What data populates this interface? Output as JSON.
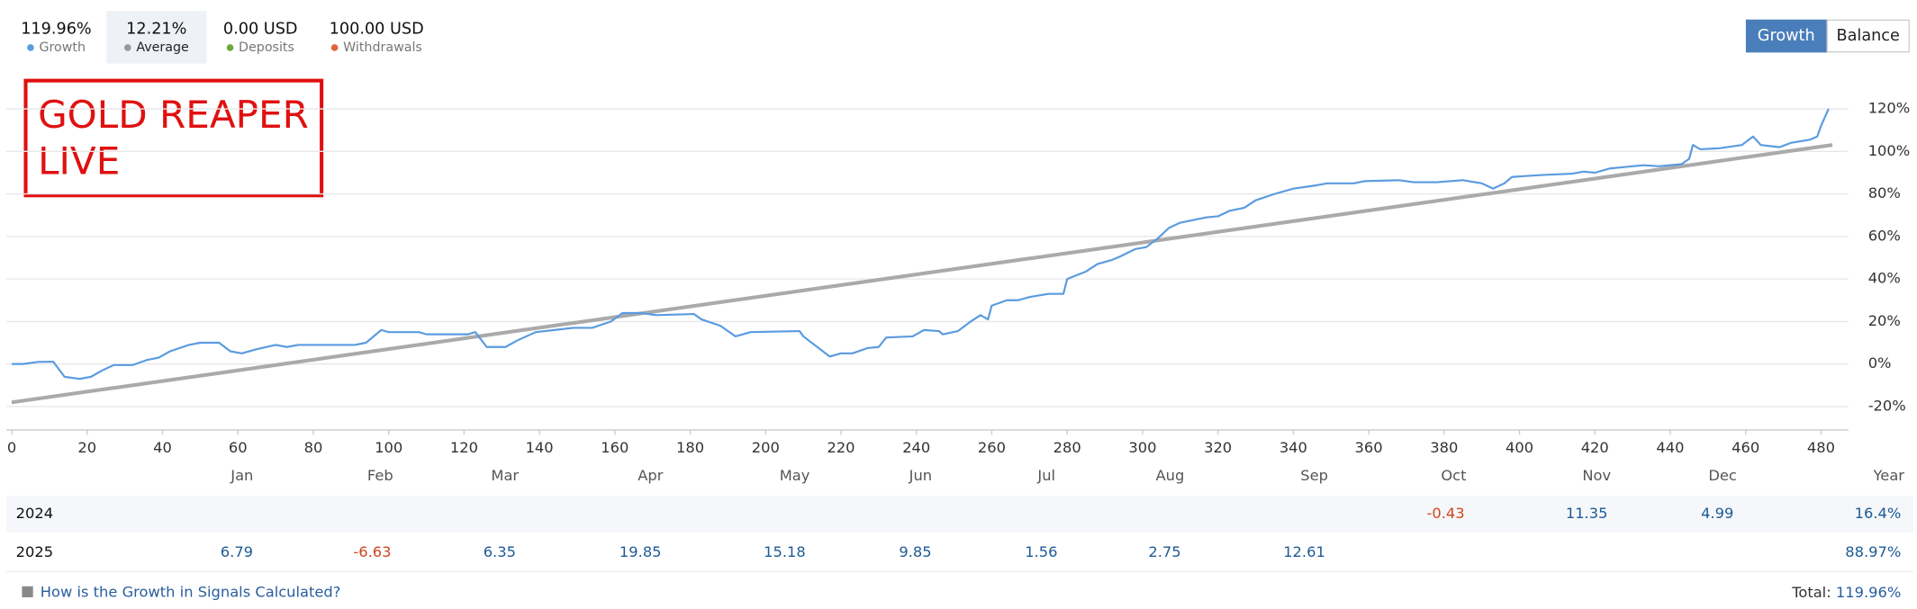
{
  "buttons": [
    "Growth",
    "Balance"
  ],
  "annotation": [
    "GOLD REAPER",
    "LIVE"
  ],
  "extra_legend": [
    {
      "name": "Deposits",
      "stat": "0.00 USD",
      "color": "#6aaa3a"
    },
    {
      "name": "Withdrawals",
      "stat": "100.00 USD",
      "color": "#e0653a"
    }
  ],
  "chart_data": {
    "type": "line",
    "series": [
      {
        "name": "Growth",
        "stat": "119.96%",
        "color": "#5b9be0",
        "x": [
          0,
          3,
          7,
          11,
          14,
          18,
          21,
          24,
          27,
          32,
          36,
          39,
          42,
          47,
          50,
          55,
          58,
          61,
          65,
          70,
          73,
          76,
          81,
          91,
          94,
          98,
          100,
          108,
          110,
          121,
          123,
          126,
          131,
          134,
          139,
          144,
          149,
          154,
          159,
          162,
          167,
          171,
          181,
          183,
          188,
          192,
          196,
          209,
          210,
          217,
          220,
          223,
          227,
          230,
          232,
          239,
          242,
          246,
          247,
          251,
          254,
          257,
          259,
          260,
          264,
          267,
          270,
          275,
          279,
          280,
          285,
          288,
          292,
          294,
          298,
          301,
          304,
          307,
          310,
          317,
          320,
          323,
          327,
          330,
          335,
          340,
          346,
          349,
          356,
          359,
          368,
          372,
          378,
          385,
          390,
          393,
          396,
          398,
          402,
          407,
          414,
          417,
          420,
          424,
          427,
          430,
          433,
          437,
          443,
          445,
          446,
          448,
          453,
          459,
          462,
          464,
          469,
          472,
          477,
          479,
          480,
          482
        ],
        "values": [
          0,
          0,
          1,
          1.1,
          -6,
          -7,
          -6,
          -3,
          -0.5,
          -0.5,
          2,
          3,
          6,
          9,
          10,
          10,
          6,
          5,
          7,
          9,
          8,
          9,
          9,
          9,
          10,
          16,
          15,
          15,
          14,
          14,
          15,
          8,
          8,
          11,
          15,
          16,
          17,
          17,
          20,
          24,
          24,
          23,
          23.5,
          21,
          18,
          13,
          15,
          15.5,
          13,
          3.5,
          5,
          5,
          7.5,
          8,
          12.5,
          13,
          16,
          15.5,
          14,
          15.5,
          19.5,
          23,
          21,
          27.5,
          30,
          30,
          31.5,
          33,
          33,
          40,
          43.5,
          47,
          49,
          50.5,
          54,
          55,
          59,
          64,
          66.5,
          69,
          69.5,
          72,
          73.5,
          77,
          80,
          82.5,
          84,
          85,
          85,
          86,
          86.5,
          85.5,
          85.5,
          86.5,
          85,
          82.5,
          85,
          88,
          88.5,
          89,
          89.5,
          90.5,
          90,
          92,
          92.5,
          93,
          93.5,
          93,
          94,
          96.5,
          103,
          101,
          101.5,
          103,
          107,
          103,
          102,
          104,
          105.5,
          107,
          112,
          120
        ]
      },
      {
        "name": "Average",
        "stat": "12.21%",
        "color": "#aaaaaa",
        "x": [
          0,
          483
        ],
        "values": [
          -18,
          103
        ]
      }
    ],
    "xlim": [
      -1.5,
      486
    ],
    "ylim": [
      -31,
      131
    ],
    "xticks": [
      0,
      20,
      40,
      60,
      80,
      100,
      120,
      140,
      160,
      180,
      200,
      220,
      240,
      260,
      280,
      300,
      320,
      340,
      360,
      380,
      400,
      420,
      440,
      460,
      480
    ],
    "yticks": [
      {
        "value": -20,
        "label": "-20%"
      },
      {
        "value": 0,
        "label": "0%"
      },
      {
        "value": 20,
        "label": "20%"
      },
      {
        "value": 40,
        "label": "40%"
      },
      {
        "value": 60,
        "label": "60%"
      },
      {
        "value": 80,
        "label": "80%"
      },
      {
        "value": 100,
        "label": "100%"
      },
      {
        "value": 120,
        "label": "120%"
      }
    ],
    "grid": true
  },
  "table": {
    "columns": [
      "Jan",
      "Feb",
      "Mar",
      "Apr",
      "May",
      "Jun",
      "Jul",
      "Aug",
      "Sep",
      "Oct",
      "Nov",
      "Dec",
      "Year"
    ],
    "rows": [
      {
        "year": "2024",
        "months": [
          null,
          null,
          null,
          null,
          null,
          null,
          null,
          null,
          null,
          -0.43,
          11.35,
          4.99
        ],
        "total": "16.4%"
      },
      {
        "year": "2025",
        "months": [
          6.79,
          -6.63,
          6.35,
          19.85,
          15.18,
          9.85,
          1.56,
          2.75,
          12.61,
          null,
          null,
          null
        ],
        "total": "88.97%"
      }
    ]
  },
  "footer": {
    "link": "How is the Growth in Signals Calculated?",
    "total_label": "Total:",
    "total_value": "119.96%"
  }
}
